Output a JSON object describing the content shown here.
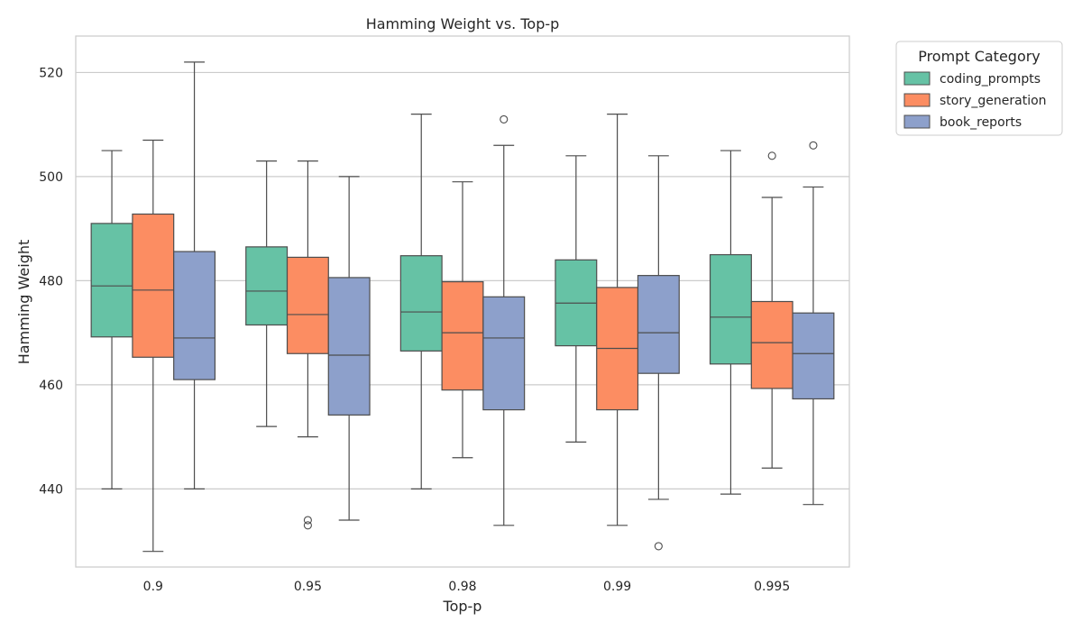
{
  "chart_data": {
    "type": "boxplot",
    "title": "Hamming Weight vs. Top-p",
    "xlabel": "Top-p",
    "ylabel": "Hamming Weight",
    "categories": [
      "0.9",
      "0.95",
      "0.98",
      "0.99",
      "0.995"
    ],
    "ylim": [
      425,
      527
    ],
    "yticks": [
      440,
      460,
      480,
      500,
      520
    ],
    "grid": true,
    "legend": {
      "title": "Prompt Category",
      "placement": "outside-top-right"
    },
    "series": [
      {
        "name": "coding_prompts",
        "color": "#66c2a5",
        "boxes": [
          {
            "whislo": 440,
            "q1": 469.2,
            "med": 479,
            "q3": 491,
            "whishi": 505,
            "fliers": []
          },
          {
            "whislo": 452,
            "q1": 471.5,
            "med": 478,
            "q3": 486.5,
            "whishi": 503,
            "fliers": []
          },
          {
            "whislo": 440,
            "q1": 466.5,
            "med": 474,
            "q3": 484.8,
            "whishi": 512,
            "fliers": []
          },
          {
            "whislo": 449,
            "q1": 467.5,
            "med": 475.7,
            "q3": 484,
            "whishi": 504,
            "fliers": []
          },
          {
            "whislo": 439,
            "q1": 464,
            "med": 473,
            "q3": 485,
            "whishi": 505,
            "fliers": []
          }
        ]
      },
      {
        "name": "story_generation",
        "color": "#fc8d62",
        "boxes": [
          {
            "whislo": 428,
            "q1": 465.3,
            "med": 478.2,
            "q3": 492.8,
            "whishi": 507,
            "fliers": []
          },
          {
            "whislo": 450,
            "q1": 466,
            "med": 473.5,
            "q3": 484.5,
            "whishi": 503,
            "fliers": [
              434,
              433
            ]
          },
          {
            "whislo": 446,
            "q1": 459,
            "med": 470,
            "q3": 479.8,
            "whishi": 499,
            "fliers": []
          },
          {
            "whislo": 433,
            "q1": 455.2,
            "med": 467,
            "q3": 478.7,
            "whishi": 512,
            "fliers": []
          },
          {
            "whislo": 444,
            "q1": 459.3,
            "med": 468.1,
            "q3": 476,
            "whishi": 496,
            "fliers": [
              504
            ]
          }
        ]
      },
      {
        "name": "book_reports",
        "color": "#8da0cb",
        "boxes": [
          {
            "whislo": 440,
            "q1": 461,
            "med": 469,
            "q3": 485.6,
            "whishi": 522,
            "fliers": []
          },
          {
            "whislo": 434,
            "q1": 454.2,
            "med": 465.7,
            "q3": 480.6,
            "whishi": 500,
            "fliers": []
          },
          {
            "whislo": 433,
            "q1": 455.2,
            "med": 469,
            "q3": 476.9,
            "whishi": 506,
            "fliers": [
              511
            ]
          },
          {
            "whislo": 438,
            "q1": 462.2,
            "med": 470,
            "q3": 481,
            "whishi": 504,
            "fliers": [
              429
            ]
          },
          {
            "whislo": 437,
            "q1": 457.3,
            "med": 466,
            "q3": 473.8,
            "whishi": 498,
            "fliers": [
              506
            ]
          }
        ]
      }
    ]
  }
}
